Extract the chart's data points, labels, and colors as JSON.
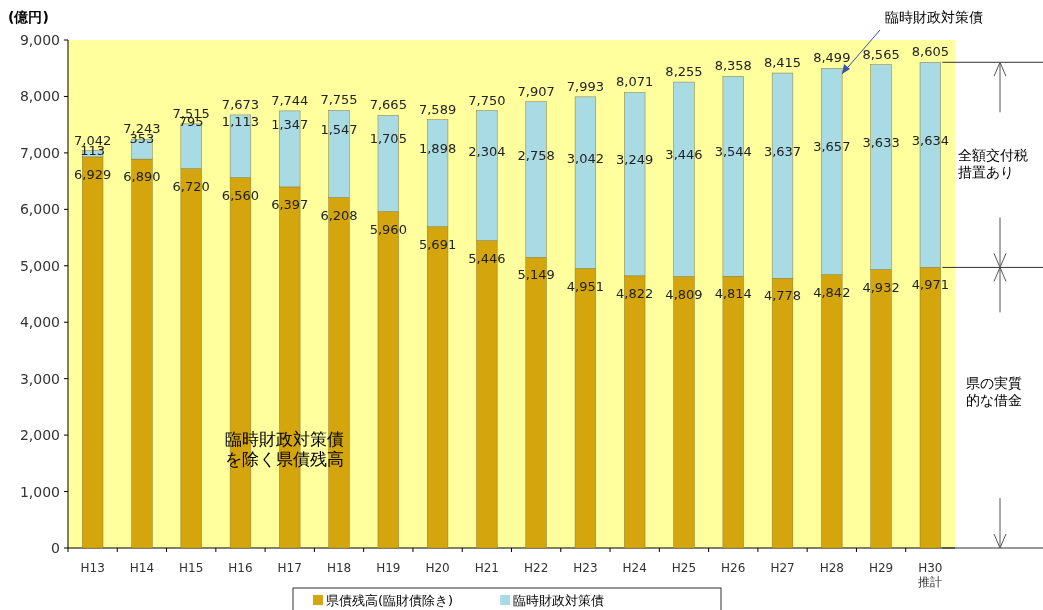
{
  "chart_data": {
    "type": "bar",
    "stacked": true,
    "ylabel": "(億円)",
    "categories": [
      "H13",
      "H14",
      "H15",
      "H16",
      "H17",
      "H18",
      "H19",
      "H20",
      "H21",
      "H22",
      "H23",
      "H24",
      "H25",
      "H26",
      "H27",
      "H28",
      "H29",
      "H30\n推計"
    ],
    "series": [
      {
        "name": "県債残高(臨財債除き)",
        "color": "#d4a50c",
        "values": [
          6929,
          6890,
          6720,
          6560,
          6397,
          6208,
          5960,
          5691,
          5446,
          5149,
          4951,
          4822,
          4809,
          4814,
          4778,
          4842,
          4932,
          4971
        ],
        "value_labels": [
          "6,929",
          "6,890",
          "6,720",
          "6,560",
          "6,397",
          "6,208",
          "5,960",
          "5,691",
          "5,446",
          "5,149",
          "4,951",
          "4,822",
          "4,809",
          "4,814",
          "4,778",
          "4,842",
          "4,932",
          "4,971"
        ]
      },
      {
        "name": "臨時財政対策債",
        "color": "#a9dbe4",
        "values": [
          113,
          353,
          795,
          1113,
          1347,
          1547,
          1705,
          1898,
          2304,
          2758,
          3042,
          3249,
          3446,
          3544,
          3637,
          3657,
          3633,
          3634
        ],
        "value_labels": [
          "113",
          "353",
          "795",
          "1,113",
          "1,347",
          "1,547",
          "1,705",
          "1,898",
          "2,304",
          "2,758",
          "3,042",
          "3,249",
          "3,446",
          "3,544",
          "3,637",
          "3,657",
          "3,633",
          "3,634"
        ]
      }
    ],
    "totals": [
      "7,042",
      "7,243",
      "7,515",
      "7,673",
      "7,744",
      "7,755",
      "7,665",
      "7,589",
      "7,750",
      "7,907",
      "7,993",
      "8,071",
      "8,255",
      "8,358",
      "8,415",
      "8,499",
      "8,565",
      "8,605"
    ],
    "ylim": [
      0,
      9000
    ],
    "yticks": [
      0,
      {
        "value": 1000,
        "label": "1,000"
      },
      {
        "value": 2000,
        "label": "2,000"
      },
      {
        "value": 3000,
        "label": "3,000"
      },
      {
        "value": 4000,
        "label": "4,000"
      },
      {
        "value": 5000,
        "label": "5,000"
      },
      {
        "value": 6000,
        "label": "6,000"
      },
      {
        "value": 7000,
        "label": "7,000"
      },
      {
        "value": 8000,
        "label": "8,000"
      },
      {
        "value": 9000,
        "label": "9,000"
      }
    ],
    "legend": "bottom",
    "annotations": [
      "臨時財政対策債",
      "臨時財政対策債を除く県債残高",
      "全額交付税措置あり",
      "県の実質的な借金"
    ]
  }
}
